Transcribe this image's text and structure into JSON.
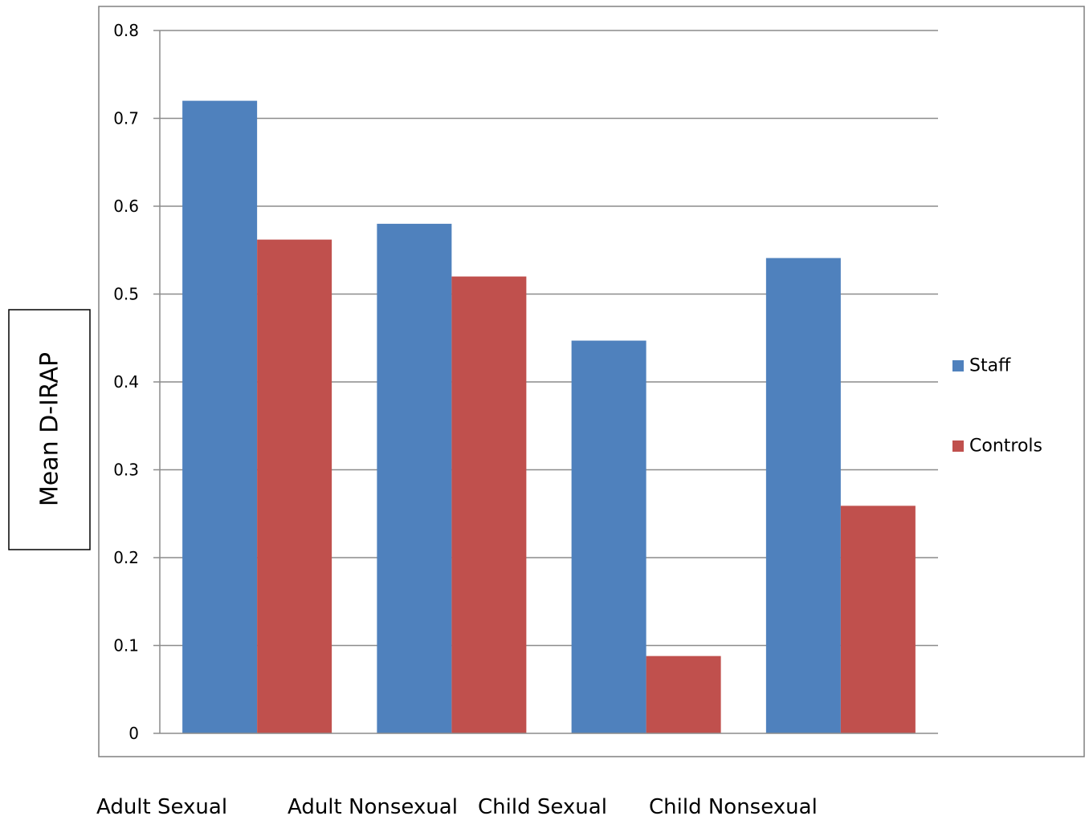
{
  "chart_data": {
    "type": "bar",
    "title": "",
    "xlabel": "",
    "ylabel": "Mean D-IRAP",
    "categories": [
      "Adult Sexual",
      "Adult Nonsexual",
      "Child Sexual",
      "Child Nonsexual"
    ],
    "series": [
      {
        "name": "Staff",
        "color": "#4F81BD",
        "values": [
          0.72,
          0.58,
          0.447,
          0.541
        ]
      },
      {
        "name": "Controls",
        "color": "#C0504D",
        "values": [
          0.562,
          0.52,
          0.088,
          0.259
        ]
      }
    ],
    "ylim": [
      0,
      0.8
    ],
    "yticks": [
      "0",
      "0.1",
      "0.2",
      "0.3",
      "0.4",
      "0.5",
      "0.6",
      "0.7",
      "0.8"
    ],
    "grid": true,
    "legend_position": "right"
  }
}
